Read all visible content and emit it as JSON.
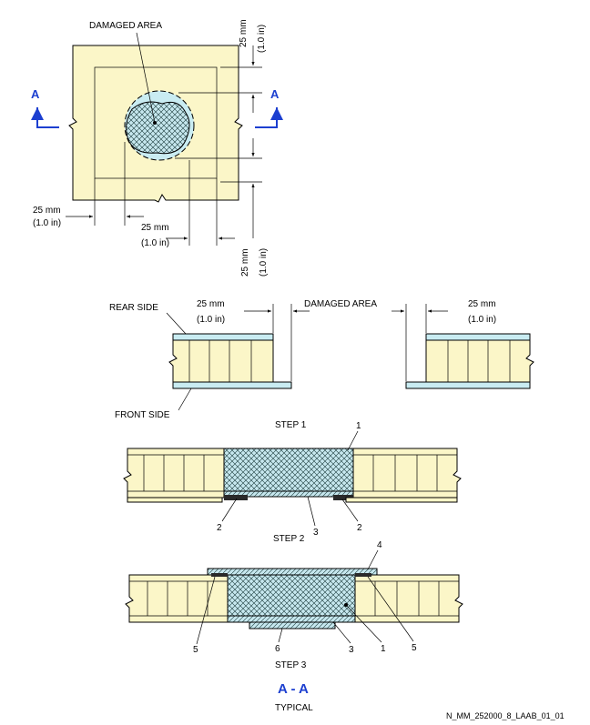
{
  "top_view": {
    "damaged_area_label": "DAMAGED AREA",
    "section_marker": "A",
    "dim_mm": "25 mm",
    "dim_in": "(1.0 in)"
  },
  "cross_section": {
    "rear_side": "REAR SIDE",
    "front_side": "FRONT SIDE",
    "damaged_area_label": "DAMAGED AREA",
    "dim_mm": "25 mm",
    "dim_in": "(1.0 in)"
  },
  "steps": {
    "step1": "STEP 1",
    "step2": "STEP 2",
    "step3": "STEP 3"
  },
  "callouts": {
    "c1": "1",
    "c2": "2",
    "c3": "3",
    "c4": "4",
    "c5": "5",
    "c6": "6"
  },
  "footer": {
    "section_title": "A - A",
    "typical": "TYPICAL",
    "figure_id": "N_MM_252000_8_LAAB_01_01"
  }
}
